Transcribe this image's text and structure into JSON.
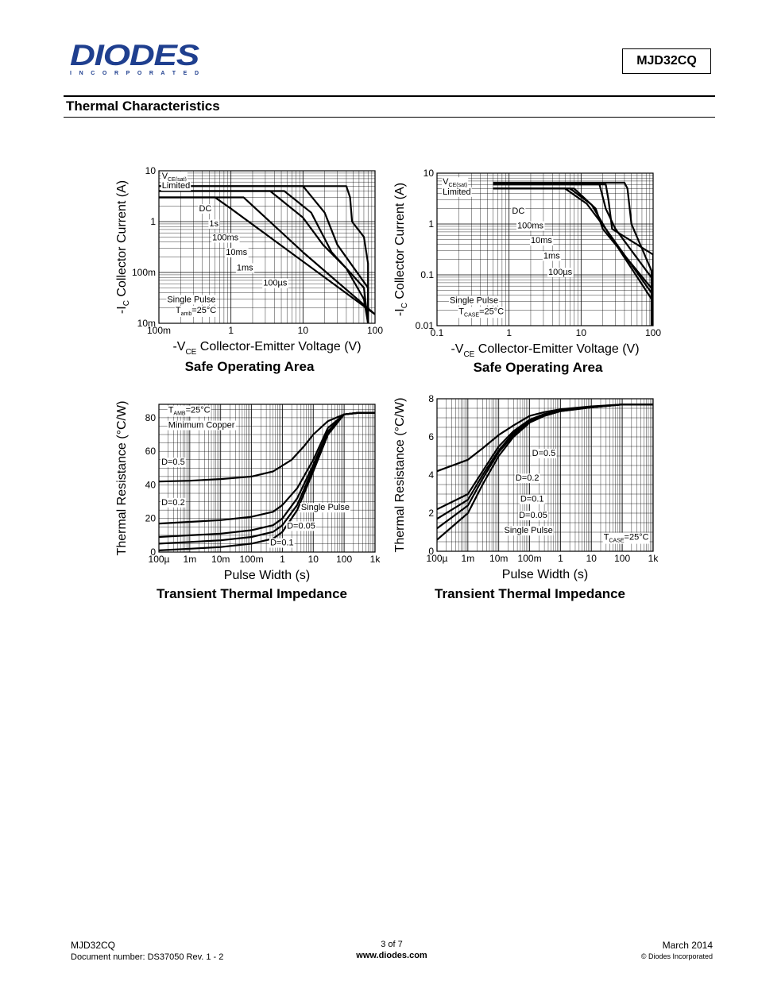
{
  "header": {
    "logo_text": "DIODES",
    "logo_subtext": "I N C O R P O R A T E D",
    "part_number": "MJD32CQ"
  },
  "section_title": "Thermal Characteristics",
  "captions": {
    "chart1": "Safe Operating Area",
    "chart2": "Safe Operating Area",
    "chart3": "Transient Thermal Impedance",
    "chart4": "Transient Thermal Impedance"
  },
  "footer": {
    "part": "MJD32CQ",
    "doc_number": "Document number: DS37050 Rev. 1 - 2",
    "page": "3 of 7",
    "website": "www.diodes.com",
    "date": "March 2014",
    "copyright": "© Diodes Incorporated"
  },
  "chart_data": [
    {
      "type": "line",
      "title": "Safe Operating Area",
      "ylabel_prefix": "-I",
      "ylabel_sub": "C",
      "ylabel_text": "Collector Current (A)",
      "xlabel_prefix": "-V",
      "xlabel_sub": "CE",
      "xlabel_text": "Collector-Emitter Voltage (V)",
      "x_scale": "log",
      "y_scale": "log",
      "xlim": [
        0.1,
        100
      ],
      "ylim": [
        0.01,
        10
      ],
      "x_ticks": [
        {
          "v": 0.1,
          "label": "100m"
        },
        {
          "v": 1,
          "label": "1"
        },
        {
          "v": 10,
          "label": "10"
        },
        {
          "v": 100,
          "label": "100"
        }
      ],
      "y_ticks": [
        {
          "v": 0.01,
          "label": "10m"
        },
        {
          "v": 0.1,
          "label": "100m"
        },
        {
          "v": 1,
          "label": "1"
        },
        {
          "v": 10,
          "label": "10"
        }
      ],
      "grid": true,
      "series": [
        {
          "name": "DC",
          "x": [
            0.1,
            0.6,
            1.0,
            100
          ],
          "y": [
            3.0,
            3.0,
            1.8,
            0.015
          ]
        },
        {
          "name": "1s",
          "x": [
            0.1,
            1.5,
            10,
            100
          ],
          "y": [
            3.0,
            3.0,
            0.25,
            0.015
          ]
        },
        {
          "name": "100ms",
          "x": [
            0.1,
            3.5,
            10,
            19,
            40,
            70,
            80
          ],
          "y": [
            4.0,
            4.0,
            1.2,
            0.35,
            0.12,
            0.03,
            0.01
          ]
        },
        {
          "name": "10ms",
          "x": [
            0.1,
            5.5,
            13,
            25,
            40,
            70,
            80
          ],
          "y": [
            4.0,
            4.0,
            1.5,
            0.25,
            0.12,
            0.05,
            0.01
          ]
        },
        {
          "name": "1ms",
          "x": [
            0.1,
            10,
            20,
            30,
            80,
            80
          ],
          "y": [
            5.0,
            5.0,
            1.5,
            0.35,
            0.05,
            0.01
          ]
        },
        {
          "name": "100µs",
          "x": [
            0.1,
            40,
            45,
            48,
            70,
            80,
            80
          ],
          "y": [
            5.0,
            5.0,
            3.0,
            1.0,
            0.5,
            0.15,
            0.01
          ]
        }
      ],
      "annotations": [
        {
          "text": "V",
          "sub": "CE(sat)",
          "x": 0.11,
          "y": 7
        },
        {
          "text": "Limited",
          "x": 0.11,
          "y": 4.5
        },
        {
          "text": "DC",
          "x": 0.36,
          "y": 1.6
        },
        {
          "text": "1s",
          "x": 0.5,
          "y": 0.8
        },
        {
          "text": "100ms",
          "x": 0.55,
          "y": 0.43
        },
        {
          "text": "10ms",
          "x": 0.85,
          "y": 0.22
        },
        {
          "text": "1ms",
          "x": 1.2,
          "y": 0.11
        },
        {
          "text": "100µs",
          "x": 2.8,
          "y": 0.055
        },
        {
          "text": "Single Pulse",
          "x": 0.13,
          "y": 0.026
        },
        {
          "text": "T",
          "sub": "amb",
          "tail": "=25°C",
          "x": 0.17,
          "y": 0.016
        }
      ]
    },
    {
      "type": "line",
      "title": "Safe Operating Area",
      "ylabel_prefix": "-I",
      "ylabel_sub": "C",
      "ylabel_text": "Collector Current (A)",
      "xlabel_prefix": "-V",
      "xlabel_sub": "CE",
      "xlabel_text": "Collector-Emitter Voltage (V)",
      "x_scale": "log",
      "y_scale": "log",
      "xlim": [
        0.1,
        100
      ],
      "ylim": [
        0.01,
        10
      ],
      "x_ticks": [
        {
          "v": 0.1,
          "label": "0.1"
        },
        {
          "v": 1,
          "label": "1"
        },
        {
          "v": 10,
          "label": "10"
        },
        {
          "v": 100,
          "label": "100"
        }
      ],
      "y_ticks": [
        {
          "v": 0.01,
          "label": "0.01"
        },
        {
          "v": 0.1,
          "label": "0.1"
        },
        {
          "v": 1,
          "label": "1"
        },
        {
          "v": 10,
          "label": "10"
        }
      ],
      "grid": true,
      "series": [
        {
          "name": "DC",
          "x": [
            0.6,
            6,
            12,
            22,
            100
          ],
          "y": [
            5,
            5,
            2.5,
            0.8,
            0.03
          ]
        },
        {
          "name": "100ms",
          "x": [
            0.6,
            7,
            14,
            22,
            100
          ],
          "y": [
            5,
            5,
            2.4,
            0.8,
            0.04
          ]
        },
        {
          "name": "10ms",
          "x": [
            0.6,
            8,
            16,
            20,
            100
          ],
          "y": [
            5,
            5,
            2,
            0.8,
            0.05
          ]
        },
        {
          "name": "1ms",
          "x": [
            0.6,
            18,
            22,
            30,
            100,
            100
          ],
          "y": [
            6,
            6,
            2,
            0.8,
            0.08,
            0.01
          ]
        },
        {
          "name": "100µs",
          "x": [
            0.6,
            22,
            24,
            27,
            100,
            100
          ],
          "y": [
            6,
            6,
            3,
            0.8,
            0.25,
            0.01
          ]
        },
        {
          "name": "100µs-b",
          "x": [
            0.6,
            40,
            44,
            50,
            95,
            95
          ],
          "y": [
            6.5,
            6.5,
            5,
            1.0,
            0.12,
            0.01
          ]
        }
      ],
      "annotations": [
        {
          "text": "V",
          "sub": "CE(sat)",
          "x": 0.12,
          "y": 6
        },
        {
          "text": "Limited",
          "x": 0.12,
          "y": 3.8
        },
        {
          "text": "DC",
          "x": 1.1,
          "y": 1.6
        },
        {
          "text": "100ms",
          "x": 1.3,
          "y": 0.82
        },
        {
          "text": "10ms",
          "x": 2.0,
          "y": 0.42
        },
        {
          "text": "1ms",
          "x": 3.0,
          "y": 0.21
        },
        {
          "text": "100µs",
          "x": 3.5,
          "y": 0.1
        },
        {
          "text": "Single Pulse",
          "x": 0.15,
          "y": 0.028
        },
        {
          "text": "T",
          "sub": "CASE",
          "tail": "=25°C",
          "x": 0.2,
          "y": 0.017
        }
      ]
    },
    {
      "type": "line",
      "title": "Transient Thermal Impedance",
      "ylabel_text": "Thermal Resistance (°C/W)",
      "xlabel_text": "Pulse Width (s)",
      "x_scale": "log",
      "y_scale": "linear",
      "xlim": [
        0.0001,
        1000
      ],
      "ylim": [
        0,
        88
      ],
      "x_ticks": [
        {
          "v": 0.0001,
          "label": "100µ"
        },
        {
          "v": 0.001,
          "label": "1m"
        },
        {
          "v": 0.01,
          "label": "10m"
        },
        {
          "v": 0.1,
          "label": "100m"
        },
        {
          "v": 1,
          "label": "1"
        },
        {
          "v": 10,
          "label": "10"
        },
        {
          "v": 100,
          "label": "100"
        },
        {
          "v": 1000,
          "label": "1k"
        }
      ],
      "y_ticks": [
        {
          "v": 0,
          "label": "0"
        },
        {
          "v": 20,
          "label": "20"
        },
        {
          "v": 40,
          "label": "40"
        },
        {
          "v": 60,
          "label": "60"
        },
        {
          "v": 80,
          "label": "80"
        }
      ],
      "grid": true,
      "series": [
        {
          "name": "D=0.5",
          "x": [
            0.0001,
            0.001,
            0.01,
            0.1,
            0.5,
            2,
            5,
            10,
            30,
            100,
            300,
            1000
          ],
          "y": [
            42,
            42.5,
            43.5,
            45,
            48,
            55,
            63,
            70,
            78,
            82,
            83,
            83
          ]
        },
        {
          "name": "D=0.2",
          "x": [
            0.0001,
            0.001,
            0.01,
            0.1,
            0.5,
            1,
            3,
            10,
            30,
            100,
            300,
            1000
          ],
          "y": [
            17,
            18,
            19,
            21,
            24,
            28,
            38,
            55,
            74,
            82,
            83,
            83
          ]
        },
        {
          "name": "D=0.1",
          "x": [
            0.0001,
            0.001,
            0.01,
            0.1,
            0.5,
            1,
            3,
            10,
            30,
            100,
            300,
            1000
          ],
          "y": [
            9,
            10,
            11,
            13,
            16,
            20,
            32,
            52,
            72,
            82,
            83,
            83
          ]
        },
        {
          "name": "D=0.05",
          "x": [
            0.0001,
            0.001,
            0.01,
            0.1,
            0.5,
            1,
            3,
            10,
            30,
            100,
            300,
            1000
          ],
          "y": [
            5,
            6,
            7,
            9,
            12,
            16,
            28,
            50,
            71,
            82,
            83,
            83
          ]
        },
        {
          "name": "Single Pulse",
          "x": [
            0.0001,
            0.001,
            0.01,
            0.1,
            0.5,
            1,
            3,
            10,
            30,
            100,
            300,
            1000
          ],
          "y": [
            1,
            2,
            3,
            5,
            8,
            12,
            25,
            48,
            70,
            82,
            83,
            83
          ]
        }
      ],
      "annotations": [
        {
          "text": "T",
          "sub": "AMB",
          "tail": "=25°C",
          "x": 0.0002,
          "y": 83
        },
        {
          "text": "Minimum Copper",
          "x": 0.0002,
          "y": 74
        },
        {
          "text": "D=0.5",
          "x": 0.00012,
          "y": 52
        },
        {
          "text": "D=0.2",
          "x": 0.00012,
          "y": 28
        },
        {
          "text": "Single Pulse",
          "x": 4,
          "y": 25
        },
        {
          "text": "D=0.05",
          "x": 1.4,
          "y": 14
        },
        {
          "text": "D=0.1",
          "x": 0.4,
          "y": 4
        }
      ]
    },
    {
      "type": "line",
      "title": "Transient Thermal Impedance",
      "ylabel_text": "Thermal Resistance (°C/W)",
      "xlabel_text": "Pulse Width (s)",
      "x_scale": "log",
      "y_scale": "linear",
      "xlim": [
        0.0001,
        1000
      ],
      "ylim": [
        0,
        8
      ],
      "x_ticks": [
        {
          "v": 0.0001,
          "label": "100µ"
        },
        {
          "v": 0.001,
          "label": "1m"
        },
        {
          "v": 0.01,
          "label": "10m"
        },
        {
          "v": 0.1,
          "label": "100m"
        },
        {
          "v": 1,
          "label": "1"
        },
        {
          "v": 10,
          "label": "10"
        },
        {
          "v": 100,
          "label": "100"
        },
        {
          "v": 1000,
          "label": "1k"
        }
      ],
      "y_ticks": [
        {
          "v": 0,
          "label": "0"
        },
        {
          "v": 2,
          "label": "2"
        },
        {
          "v": 4,
          "label": "4"
        },
        {
          "v": 6,
          "label": "6"
        },
        {
          "v": 8,
          "label": "8"
        }
      ],
      "grid": true,
      "series": [
        {
          "name": "D=0.5",
          "x": [
            0.0001,
            0.001,
            0.003,
            0.01,
            0.03,
            0.1,
            0.3,
            1,
            10,
            100,
            1000
          ],
          "y": [
            4.2,
            4.8,
            5.4,
            6.1,
            6.6,
            7.1,
            7.3,
            7.45,
            7.6,
            7.7,
            7.7
          ]
        },
        {
          "name": "D=0.2",
          "x": [
            0.0001,
            0.001,
            0.003,
            0.01,
            0.03,
            0.1,
            0.3,
            1,
            10,
            100,
            1000
          ],
          "y": [
            2.2,
            3.0,
            4.2,
            5.5,
            6.3,
            6.9,
            7.2,
            7.4,
            7.55,
            7.7,
            7.7
          ]
        },
        {
          "name": "D=0.1",
          "x": [
            0.0001,
            0.001,
            0.003,
            0.01,
            0.03,
            0.1,
            0.3,
            1,
            10,
            100,
            1000
          ],
          "y": [
            1.7,
            2.7,
            4.0,
            5.3,
            6.2,
            6.85,
            7.15,
            7.4,
            7.55,
            7.7,
            7.7
          ]
        },
        {
          "name": "D=0.05",
          "x": [
            0.0001,
            0.001,
            0.003,
            0.01,
            0.03,
            0.1,
            0.3,
            1,
            10,
            100,
            1000
          ],
          "y": [
            1.2,
            2.4,
            3.8,
            5.2,
            6.1,
            6.8,
            7.1,
            7.35,
            7.55,
            7.7,
            7.7
          ]
        },
        {
          "name": "Single Pulse",
          "x": [
            0.0001,
            0.001,
            0.003,
            0.01,
            0.03,
            0.1,
            0.3,
            1,
            10,
            100,
            1000
          ],
          "y": [
            0.6,
            2.0,
            3.5,
            5.0,
            6.0,
            6.75,
            7.1,
            7.35,
            7.55,
            7.7,
            7.7
          ]
        }
      ],
      "annotations": [
        {
          "text": "D=0.5",
          "x": 0.12,
          "y": 5.0
        },
        {
          "text": "D=0.2",
          "x": 0.035,
          "y": 3.7
        },
        {
          "text": "D=0.1",
          "x": 0.05,
          "y": 2.6
        },
        {
          "text": "D=0.05",
          "x": 0.045,
          "y": 1.75
        },
        {
          "text": "Single Pulse",
          "x": 0.015,
          "y": 0.95
        },
        {
          "text": "T",
          "sub": "CASE",
          "tail": "=25°C",
          "x": 25,
          "y": 0.6
        }
      ]
    }
  ]
}
